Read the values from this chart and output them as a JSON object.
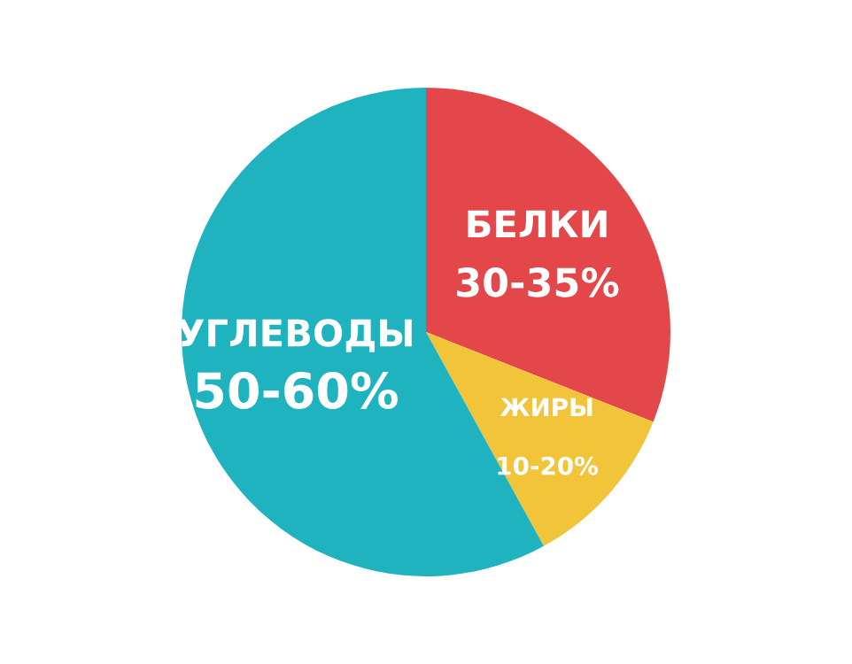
{
  "chart_data": {
    "type": "pie",
    "categories": [
      "БЕЛКИ",
      "ЖИРЫ",
      "УГЛЕВОДЫ"
    ],
    "values": [
      31,
      11,
      58
    ],
    "annotations": [
      "30-35%",
      "10-20%",
      "50-60%"
    ],
    "colors": [
      "#e3474a",
      "#f2c43a",
      "#1fb3c0"
    ]
  }
}
